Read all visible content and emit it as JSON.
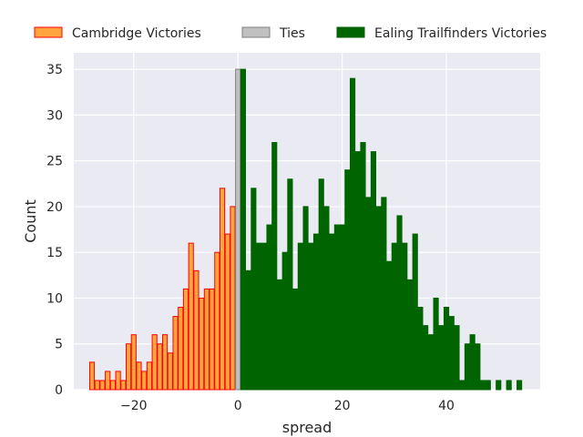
{
  "chart_data": {
    "type": "bar",
    "title": "",
    "xlabel": "spread",
    "ylabel": "Count",
    "xlim": [
      -31.5,
      58
    ],
    "ylim": [
      0,
      36.8
    ],
    "xticks": [
      -20,
      0,
      20,
      40
    ],
    "yticks": [
      0,
      5,
      10,
      15,
      20,
      25,
      30,
      35
    ],
    "grid": true,
    "legend_position": "top",
    "series": [
      {
        "name": "Cambridge Victories",
        "color": "#ffa540",
        "edge_color": "#ff0000",
        "x": [
          -28,
          -27,
          -26,
          -25,
          -24,
          -23,
          -22,
          -21,
          -20,
          -19,
          -18,
          -17,
          -16,
          -15,
          -14,
          -13,
          -12,
          -11,
          -10,
          -9,
          -8,
          -7,
          -6,
          -5,
          -4,
          -3,
          -2,
          -1
        ],
        "values": [
          3,
          1,
          1,
          2,
          1,
          2,
          1,
          5,
          6,
          3,
          2,
          3,
          6,
          5,
          6,
          4,
          8,
          9,
          11,
          16,
          13,
          10,
          11,
          11,
          15,
          22,
          17,
          20
        ]
      },
      {
        "name": "Ties",
        "color": "#c0c0c0",
        "edge_color": "#808080",
        "x": [
          0
        ],
        "values": [
          35
        ]
      },
      {
        "name": "Ealing Trailfinders Victories",
        "color": "#006400",
        "edge_color": "#006400",
        "x": [
          1,
          2,
          3,
          4,
          5,
          6,
          7,
          8,
          9,
          10,
          11,
          12,
          13,
          14,
          15,
          16,
          17,
          18,
          19,
          20,
          21,
          22,
          23,
          24,
          25,
          26,
          27,
          28,
          29,
          30,
          31,
          32,
          33,
          34,
          35,
          36,
          37,
          38,
          39,
          40,
          41,
          42,
          43,
          44,
          45,
          46,
          47,
          48,
          50,
          52,
          54
        ],
        "values": [
          35,
          13,
          22,
          16,
          16,
          18,
          27,
          12,
          15,
          23,
          11,
          16,
          20,
          16,
          17,
          23,
          20,
          17,
          18,
          18,
          24,
          34,
          26,
          27,
          21,
          26,
          20,
          21,
          14,
          16,
          19,
          16,
          12,
          17,
          9,
          7,
          6,
          10,
          7,
          9,
          8,
          7,
          1,
          5,
          6,
          5,
          1,
          1,
          1,
          1,
          1
        ]
      }
    ]
  }
}
